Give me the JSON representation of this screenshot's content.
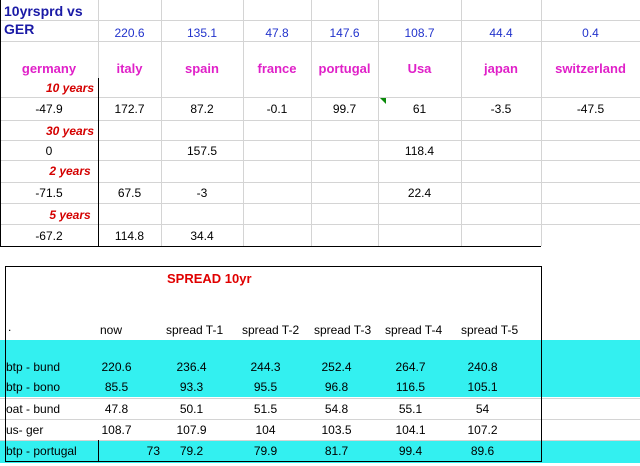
{
  "top": {
    "title_line1": "10yrsprd vs",
    "title_line2": "GER",
    "spreads": [
      "220.6",
      "135.1",
      "47.8",
      "147.6",
      "108.7",
      "44.4",
      "0.4"
    ],
    "countries": [
      "germany",
      "italy",
      "spain",
      "france",
      "portugal",
      "Usa",
      "japan",
      "switzerland"
    ],
    "groups": [
      {
        "label": "10 years",
        "values": [
          "-47.9",
          "172.7",
          "87.2",
          "-0.1",
          "99.7",
          "61",
          "-3.5",
          "-47.5"
        ]
      },
      {
        "label": "30 years",
        "values": [
          "0",
          "",
          "157.5",
          "",
          "",
          "118.4",
          "",
          ""
        ]
      },
      {
        "label": "2 years",
        "values": [
          "-71.5",
          "67.5",
          "-3",
          "",
          "",
          "22.4",
          "",
          ""
        ]
      },
      {
        "label": "5 years",
        "values": [
          "-67.2",
          "114.8",
          "34.4",
          "",
          "",
          "",
          "",
          ""
        ]
      }
    ]
  },
  "bottom": {
    "title": "SPREAD 10yr",
    "dot": ".",
    "headers": [
      "now",
      "spread T-1",
      "spread T-2",
      "spread T-3",
      "spread T-4",
      "spread T-5"
    ],
    "rows": [
      {
        "label": "btp - bund",
        "values": [
          "220.6",
          "236.4",
          "244.3",
          "252.4",
          "264.7",
          "240.8"
        ],
        "highlight": true
      },
      {
        "label": "btp - bono",
        "values": [
          "85.5",
          "93.3",
          "95.5",
          "96.8",
          "116.5",
          "105.1"
        ],
        "highlight": true
      },
      {
        "label": "oat - bund",
        "values": [
          "47.8",
          "50.1",
          "51.5",
          "54.8",
          "55.1",
          "54"
        ],
        "highlight": false
      },
      {
        "label": "us- ger",
        "values": [
          "108.7",
          "107.9",
          "104",
          "103.5",
          "104.1",
          "107.2"
        ],
        "highlight": false
      },
      {
        "label": "btp - portugal",
        "values": [
          "73",
          "79.2",
          "79.9",
          "81.7",
          "99.4",
          "89.6"
        ],
        "highlight": true
      }
    ],
    "highlight_color": "#33f0f0"
  }
}
